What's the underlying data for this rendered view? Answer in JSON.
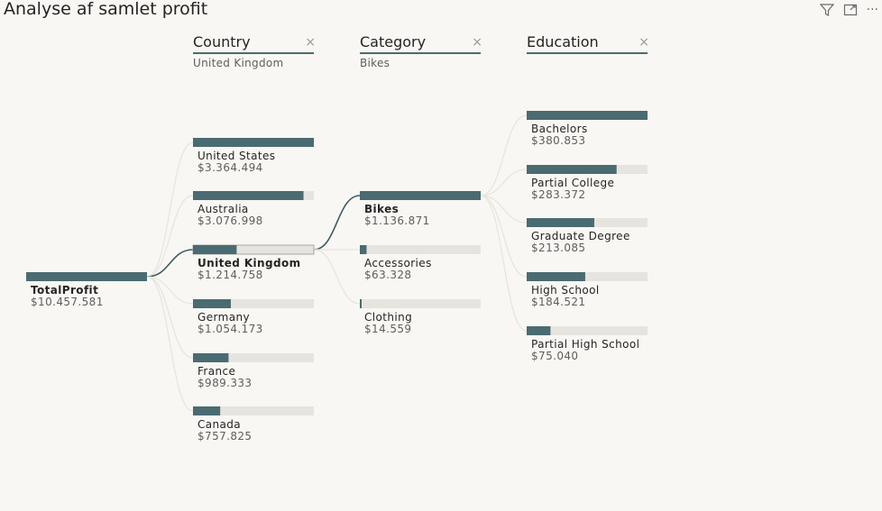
{
  "title": "Analyse af samlet profit",
  "toolbar": {
    "filter_icon": "filter-icon",
    "focus_icon": "focus-mode-icon",
    "more_icon": "more-options-icon",
    "more_glyph": "···"
  },
  "colors": {
    "bar": "#4a6b72",
    "track": "#e6e4de",
    "active_edge": "#3e5d64",
    "edge": "#e6e4de"
  },
  "chart_data": {
    "type": "decomposition-tree",
    "root": {
      "label": "TotalProfit",
      "value": 10457581,
      "display": "$10.457.581"
    },
    "levels": [
      {
        "header": "Country",
        "selection": "United Kingdom",
        "close": "×",
        "selected_index": 2,
        "items": [
          {
            "label": "United States",
            "value": 3364494,
            "display": "$3.364.494"
          },
          {
            "label": "Australia",
            "value": 3076998,
            "display": "$3.076.998"
          },
          {
            "label": "United Kingdom",
            "value": 1214758,
            "display": "$1.214.758"
          },
          {
            "label": "Germany",
            "value": 1054173,
            "display": "$1.054.173"
          },
          {
            "label": "France",
            "value": 989333,
            "display": "$989.333"
          },
          {
            "label": "Canada",
            "value": 757825,
            "display": "$757.825"
          }
        ]
      },
      {
        "header": "Category",
        "selection": "Bikes",
        "close": "×",
        "selected_index": 0,
        "items": [
          {
            "label": "Bikes",
            "value": 1136871,
            "display": "$1.136.871"
          },
          {
            "label": "Accessories",
            "value": 63328,
            "display": "$63.328"
          },
          {
            "label": "Clothing",
            "value": 14559,
            "display": "$14.559"
          }
        ]
      },
      {
        "header": "Education",
        "selection": "",
        "close": "×",
        "selected_index": -1,
        "items": [
          {
            "label": "Bachelors",
            "value": 380853,
            "display": "$380.853"
          },
          {
            "label": "Partial College",
            "value": 283372,
            "display": "$283.372"
          },
          {
            "label": "Graduate Degree",
            "value": 213085,
            "display": "$213.085"
          },
          {
            "label": "High School",
            "value": 184521,
            "display": "$184.521"
          },
          {
            "label": "Partial High School",
            "value": 75040,
            "display": "$75.040"
          }
        ]
      }
    ]
  }
}
